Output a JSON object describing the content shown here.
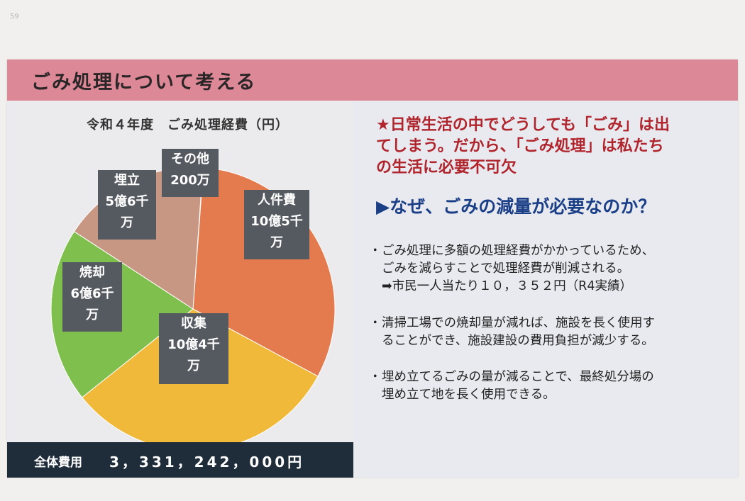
{
  "page_number": "59",
  "header": {
    "title": "ごみ処理について考える"
  },
  "chart": {
    "title": "令和４年度　ごみ処理経費（円）"
  },
  "chart_data": {
    "type": "pie",
    "title": "令和４年度　ごみ処理経費（円）",
    "unit": "円",
    "slices": [
      {
        "label": "その他",
        "value_text": "200万",
        "value": 2000000,
        "color": "#b8b2b0"
      },
      {
        "label": "人件費",
        "value_text": "10億5千万",
        "value": 1050000000,
        "color": "#e37b4f"
      },
      {
        "label": "収集",
        "value_text": "10億4千万",
        "value": 1040000000,
        "color": "#f0b93a"
      },
      {
        "label": "焼却",
        "value_text": "6億6千万",
        "value": 660000000,
        "color": "#7fbf4d"
      },
      {
        "label": "埋立",
        "value_text": "5億6千万",
        "value": 560000000,
        "color": "#c89783"
      }
    ]
  },
  "labels": {
    "other": {
      "line1": "その他",
      "line2": "200万"
    },
    "personnel": {
      "line1": "人件費",
      "line2": "10億5千",
      "line3": "万"
    },
    "collection": {
      "line1": "収集",
      "line2": "10億4千",
      "line3": "万"
    },
    "incineration": {
      "line1": "焼却",
      "line2": "6億6千",
      "line3": "万"
    },
    "landfill": {
      "line1": "埋立",
      "line2": "5億6千",
      "line3": "万"
    }
  },
  "total": {
    "label": "全体費用",
    "value": "3，331，242，000円"
  },
  "intro": {
    "line1": "★日常生活の中でどうしても「ごみ」は出",
    "line2": "てしまう。だから、「ごみ処理」は私たち",
    "line3": "の生活に必要不可欠"
  },
  "question": "▶なぜ、ごみの減量が必要なのか？",
  "bullets": [
    {
      "dot": "・",
      "line1": "ごみ処理に多額の処理経費がかかっているため、",
      "line2": "ごみを減らすことで処理経費が削減される。",
      "line3": "➡市民一人当たり１０，３５２円（R4実績）"
    },
    {
      "dot": "・",
      "line1": "清掃工場での焼却量が減れば、施設を長く使用す",
      "line2": "ることができ、施設建設の費用負担が減少する。"
    },
    {
      "dot": "・",
      "line1": "埋め立てるごみの量が減ることで、最終処分場の",
      "line2": "埋め立て地を長く使用できる。"
    }
  ]
}
